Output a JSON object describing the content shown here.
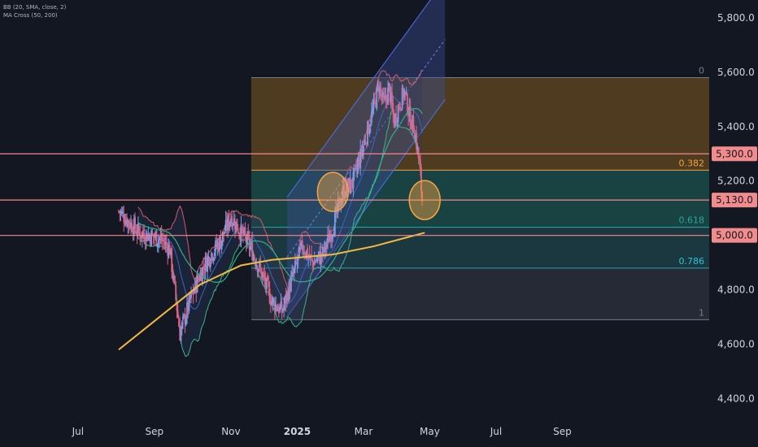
{
  "legend": {
    "line1": "BB (20, SMA, close, 2)",
    "line2": "MA Cross (50, 200)"
  },
  "colors": {
    "background": "#131722",
    "up_candle": "#7e9be8",
    "down_candle": "#e0607e",
    "bb_upper": "#d35a6a",
    "bb_lower": "#3bb38a",
    "bb_basis": "#3a64c8",
    "ma50": "#2bb389",
    "ma200": "#f5b942",
    "horizontal_line": "#f48a8a",
    "badge": "#f28b8b",
    "fib_zone_top": "#5a4320",
    "fib_zone_mid": "#1b4a48",
    "fib_zone_low": "#1d3d44",
    "fib_zone_bottom": "#2a2e39",
    "channel_fill": "#3c4f9a",
    "circle": "#f5a442"
  },
  "chart_data": {
    "type": "candlestick",
    "x_axis_labels": [
      "Jul",
      "Sep",
      "Nov",
      "2025",
      "Mar",
      "May",
      "Jul",
      "Sep"
    ],
    "y_axis_labels": [
      "5,800.0",
      "5,600.0",
      "5,400.0",
      "5,200.0",
      "4,800.0",
      "4,600.0",
      "4,400.0"
    ],
    "y_ticks": [
      5800,
      5600,
      5400,
      5200,
      4800,
      4600,
      4400
    ],
    "ylim": [
      4380,
      5850
    ],
    "price_path_weeks": [
      {
        "w": -26,
        "p": 5090
      },
      {
        "w": -22,
        "p": 5010
      },
      {
        "w": -18,
        "p": 4990
      },
      {
        "w": -16,
        "p": 4950
      },
      {
        "w": -14,
        "p": 4640
      },
      {
        "w": -12,
        "p": 4760
      },
      {
        "w": -10,
        "p": 4860
      },
      {
        "w": -8,
        "p": 4930
      },
      {
        "w": -6,
        "p": 4980
      },
      {
        "w": -4,
        "p": 5070
      },
      {
        "w": -2,
        "p": 5010
      },
      {
        "w": 0,
        "p": 4950
      },
      {
        "w": 2,
        "p": 4860
      },
      {
        "w": 4,
        "p": 4760
      },
      {
        "w": 6,
        "p": 4720
      },
      {
        "w": 8,
        "p": 4840
      },
      {
        "w": 10,
        "p": 4960
      },
      {
        "w": 12,
        "p": 4900
      },
      {
        "w": 14,
        "p": 4930
      },
      {
        "w": 16,
        "p": 5030
      },
      {
        "w": 18,
        "p": 5160
      },
      {
        "w": 20,
        "p": 5200
      },
      {
        "w": 22,
        "p": 5330
      },
      {
        "w": 24,
        "p": 5470
      },
      {
        "w": 25,
        "p": 5550
      },
      {
        "w": 26,
        "p": 5480
      },
      {
        "w": 27,
        "p": 5540
      },
      {
        "w": 28,
        "p": 5420
      },
      {
        "w": 29,
        "p": 5480
      },
      {
        "w": 30,
        "p": 5530
      },
      {
        "w": 31,
        "p": 5440
      },
      {
        "w": 32,
        "p": 5390
      },
      {
        "w": 33,
        "p": 5260
      },
      {
        "w": 33.5,
        "p": 5130
      }
    ],
    "ma200": [
      [
        -26,
        4580
      ],
      [
        -18,
        4700
      ],
      [
        -10,
        4820
      ],
      [
        -2,
        4890
      ],
      [
        4,
        4910
      ],
      [
        10,
        4920
      ],
      [
        16,
        4930
      ],
      [
        24,
        4960
      ],
      [
        30,
        4990
      ],
      [
        34,
        5010
      ]
    ],
    "horizontal_levels": [
      5300,
      5130,
      5000
    ],
    "level_badges": [
      "5,300.0",
      "5,130.0",
      "5,000.0"
    ],
    "fibonacci": {
      "high": 5580,
      "low": 4690,
      "levels": [
        {
          "ratio": 0,
          "label": "0",
          "price": 5580
        },
        {
          "ratio": 0.382,
          "label": "0.382",
          "price": 5240
        },
        {
          "ratio": 0.618,
          "label": "0.618",
          "price": 5030
        },
        {
          "ratio": 0.786,
          "label": "0.786",
          "price": 4880
        },
        {
          "ratio": 1,
          "label": "1",
          "price": 4690
        }
      ]
    },
    "channel": {
      "lower_start": [
        7,
        4700
      ],
      "lower_end": [
        38,
        5500
      ],
      "upper_start": [
        7,
        5140
      ],
      "upper_end": [
        38,
        5940
      ]
    },
    "annotations": [
      {
        "type": "circle",
        "x_week": 16,
        "price": 5160
      },
      {
        "type": "circle",
        "x_week": 34,
        "price": 5130
      }
    ]
  }
}
